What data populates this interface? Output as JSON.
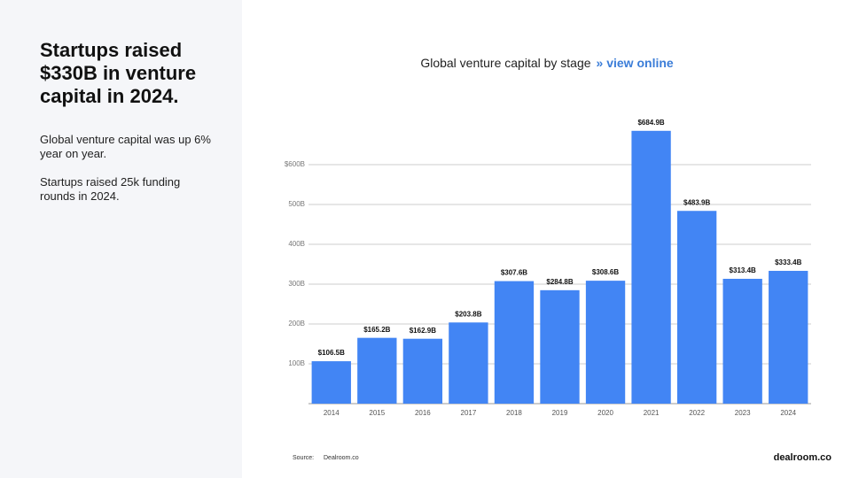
{
  "slide": {
    "title": "Startups raised $330B in venture capital in 2024.",
    "paragraphs": [
      "Global venture capital was up 6% year on year.",
      "Startups raised 25k funding rounds in 2024."
    ]
  },
  "chart_data": {
    "type": "bar",
    "title": "Global venture capital by stage",
    "link": "» view online",
    "categories": [
      "2014",
      "2015",
      "2016",
      "2017",
      "2018",
      "2019",
      "2020",
      "2021",
      "2022",
      "2023",
      "2024"
    ],
    "values": [
      106.5,
      165.2,
      162.9,
      203.8,
      307.6,
      284.8,
      308.6,
      684.9,
      483.9,
      313.4,
      333.4
    ],
    "value_labels": [
      "$106.5B",
      "$165.2B",
      "$162.9B",
      "$203.8B",
      "$307.6B",
      "$284.8B",
      "$308.6B",
      "$684.9B",
      "$483.9B",
      "$313.4B",
      "$333.4B"
    ],
    "color": "#4285f4",
    "ylim": [
      0,
      700
    ],
    "yticks": [
      {
        "value": 100,
        "label": "100B"
      },
      {
        "value": 200,
        "label": "200B"
      },
      {
        "value": 300,
        "label": "300B"
      },
      {
        "value": 400,
        "label": "400B"
      },
      {
        "value": 500,
        "label": "500B"
      },
      {
        "value": 600,
        "label": "$600B"
      }
    ],
    "grid": true
  },
  "footer": {
    "source_label": "Source:",
    "source": "Dealroom.co",
    "logo": "dealroom.co"
  }
}
